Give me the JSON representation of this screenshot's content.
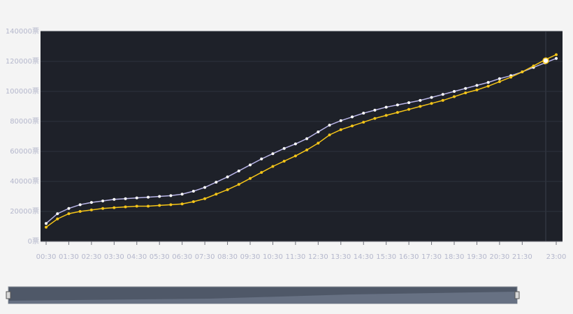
{
  "chart_data": {
    "type": "line",
    "categories": [
      "00:30",
      null,
      "01:30",
      null,
      "02:30",
      null,
      "03:30",
      null,
      "04:30",
      null,
      "05:30",
      null,
      "06:30",
      null,
      "07:30",
      null,
      "08:30",
      null,
      "09:30",
      null,
      "10:30",
      null,
      "11:30",
      null,
      "12:30",
      null,
      "13:30",
      null,
      "14:30",
      null,
      "15:30",
      null,
      "16:30",
      null,
      "17:30",
      null,
      "18:30",
      null,
      "19:30",
      null,
      "20:30",
      null,
      "21:30",
      null,
      null,
      "23:00"
    ],
    "series": [
      {
        "color": "#b9b5e8",
        "values": [
          12000,
          18500,
          22000,
          24500,
          26000,
          27000,
          28000,
          28500,
          29000,
          29500,
          30000,
          30500,
          31500,
          33500,
          36000,
          39500,
          43000,
          47000,
          51000,
          55000,
          58500,
          62000,
          65000,
          68500,
          73000,
          77500,
          80500,
          83000,
          85500,
          87500,
          89500,
          91000,
          92500,
          94000,
          96000,
          98000,
          100000,
          102000,
          104000,
          106000,
          108500,
          110500,
          113000,
          116000,
          119000,
          122000
        ]
      },
      {
        "color": "#f5c518",
        "values": [
          9500,
          15000,
          18500,
          20000,
          21000,
          22000,
          22500,
          23000,
          23500,
          23500,
          24000,
          24500,
          25000,
          26500,
          28500,
          31500,
          34500,
          38000,
          42000,
          46000,
          50000,
          53500,
          57000,
          61000,
          65500,
          71000,
          74500,
          77000,
          79500,
          82000,
          84000,
          86000,
          88000,
          90000,
          92000,
          94000,
          96500,
          99000,
          101000,
          103500,
          106500,
          109500,
          113000,
          117000,
          121000,
          124500
        ]
      }
    ],
    "ylim": [
      0,
      140000
    ],
    "yticks": [
      {
        "value": 0,
        "label": "0票"
      },
      {
        "value": 20000,
        "label": "20000票"
      },
      {
        "value": 40000,
        "label": "40000票"
      },
      {
        "value": 60000,
        "label": "60000票"
      },
      {
        "value": 80000,
        "label": "80000票"
      },
      {
        "value": 100000,
        "label": "100000票"
      },
      {
        "value": 120000,
        "label": "120000票"
      },
      {
        "value": 140000,
        "label": "140000票"
      }
    ],
    "grid": true
  }
}
